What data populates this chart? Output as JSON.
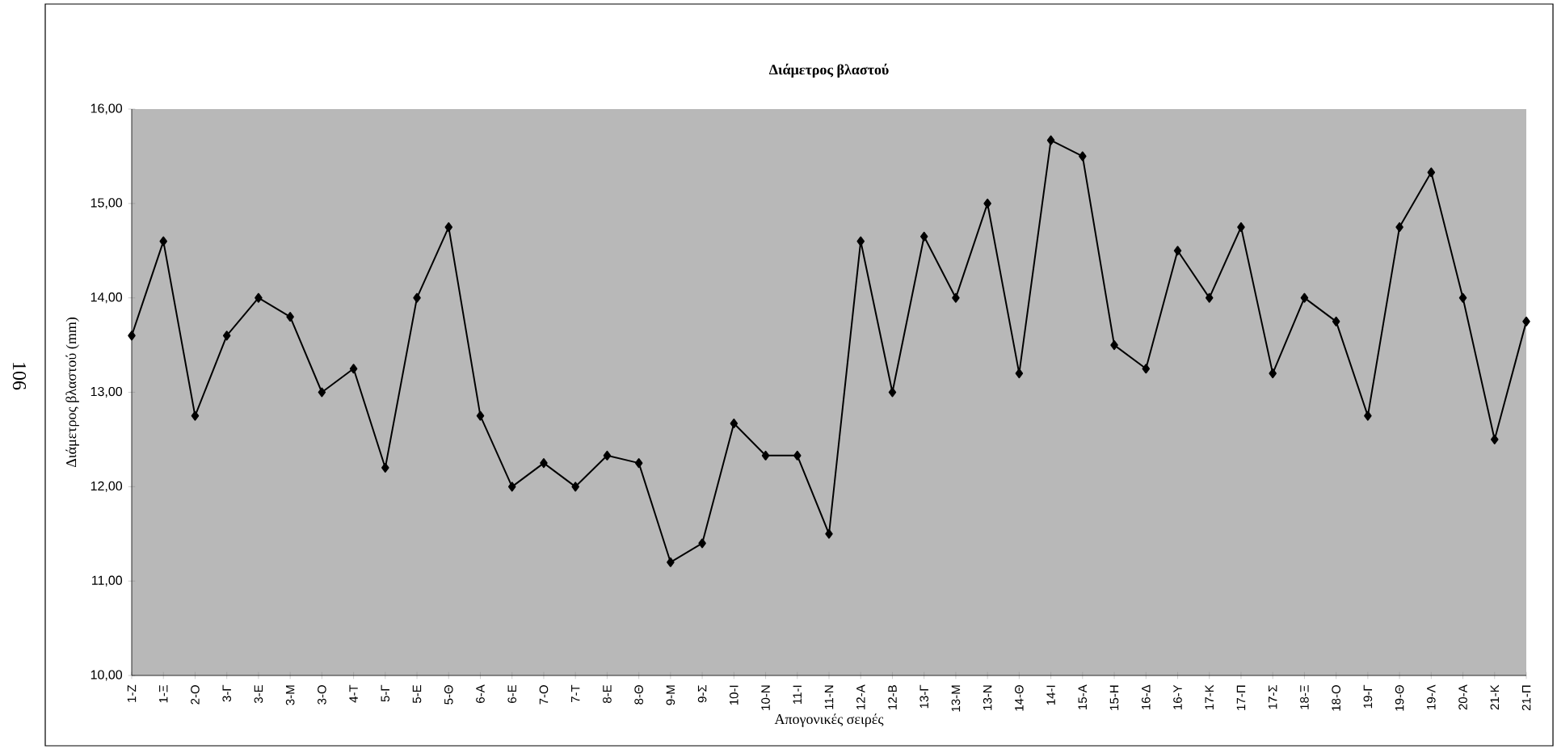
{
  "chart_data": {
    "type": "line",
    "title": "Διάμετρος βλαστού",
    "xlabel": "Απογονικές σειρές",
    "ylabel": "Διάμετρος βλαστού (mm)",
    "categories": [
      "1-Ζ",
      "1-Ξ",
      "2-Ο",
      "3-Γ",
      "3-Ε",
      "3-Μ",
      "3-Ο",
      "4-Τ",
      "5-Γ",
      "5-Ε",
      "5-Θ",
      "6-Α",
      "6-Ε",
      "7-Ο",
      "7-Τ",
      "8-Ε",
      "8-Θ",
      "9-Μ",
      "9-Σ",
      "10-Ι",
      "10-Ν",
      "11-Ι",
      "11-Ν",
      "12-Α",
      "12-Β",
      "13-Γ",
      "13-Μ",
      "13-Ν",
      "14-Θ",
      "14-Ι",
      "15-Α",
      "15-Η",
      "16-Δ",
      "16-Υ",
      "17-Κ",
      "17-Π",
      "17-Σ",
      "18-Ξ",
      "18-Ο",
      "19-Γ",
      "19-Θ",
      "19-Λ",
      "20-Α",
      "21-Κ",
      "21-Π"
    ],
    "values": [
      13.6,
      14.6,
      12.75,
      13.6,
      14.0,
      13.8,
      13.0,
      13.25,
      12.2,
      14.0,
      14.75,
      12.75,
      12.0,
      12.25,
      12.0,
      12.33,
      12.25,
      11.2,
      11.4,
      12.67,
      12.33,
      12.33,
      11.5,
      14.6,
      13.0,
      14.65,
      14.0,
      15.0,
      13.2,
      15.67,
      15.5,
      13.5,
      13.25,
      14.5,
      14.0,
      14.75,
      13.2,
      14.0,
      13.75,
      12.75,
      14.75,
      15.33,
      14.0,
      12.5,
      13.75
    ],
    "color": "#000000",
    "marker": "diamond",
    "line_style": "solid",
    "ylim": [
      10,
      16
    ],
    "yticks": [
      {
        "value": 10,
        "label": "10,00"
      },
      {
        "value": 11,
        "label": "11,00"
      },
      {
        "value": 12,
        "label": "12,00"
      },
      {
        "value": 13,
        "label": "13,00"
      },
      {
        "value": 14,
        "label": "14,00"
      },
      {
        "value": 15,
        "label": "15,00"
      },
      {
        "value": 16,
        "label": "16,00"
      }
    ],
    "annotations": [
      "106"
    ]
  }
}
